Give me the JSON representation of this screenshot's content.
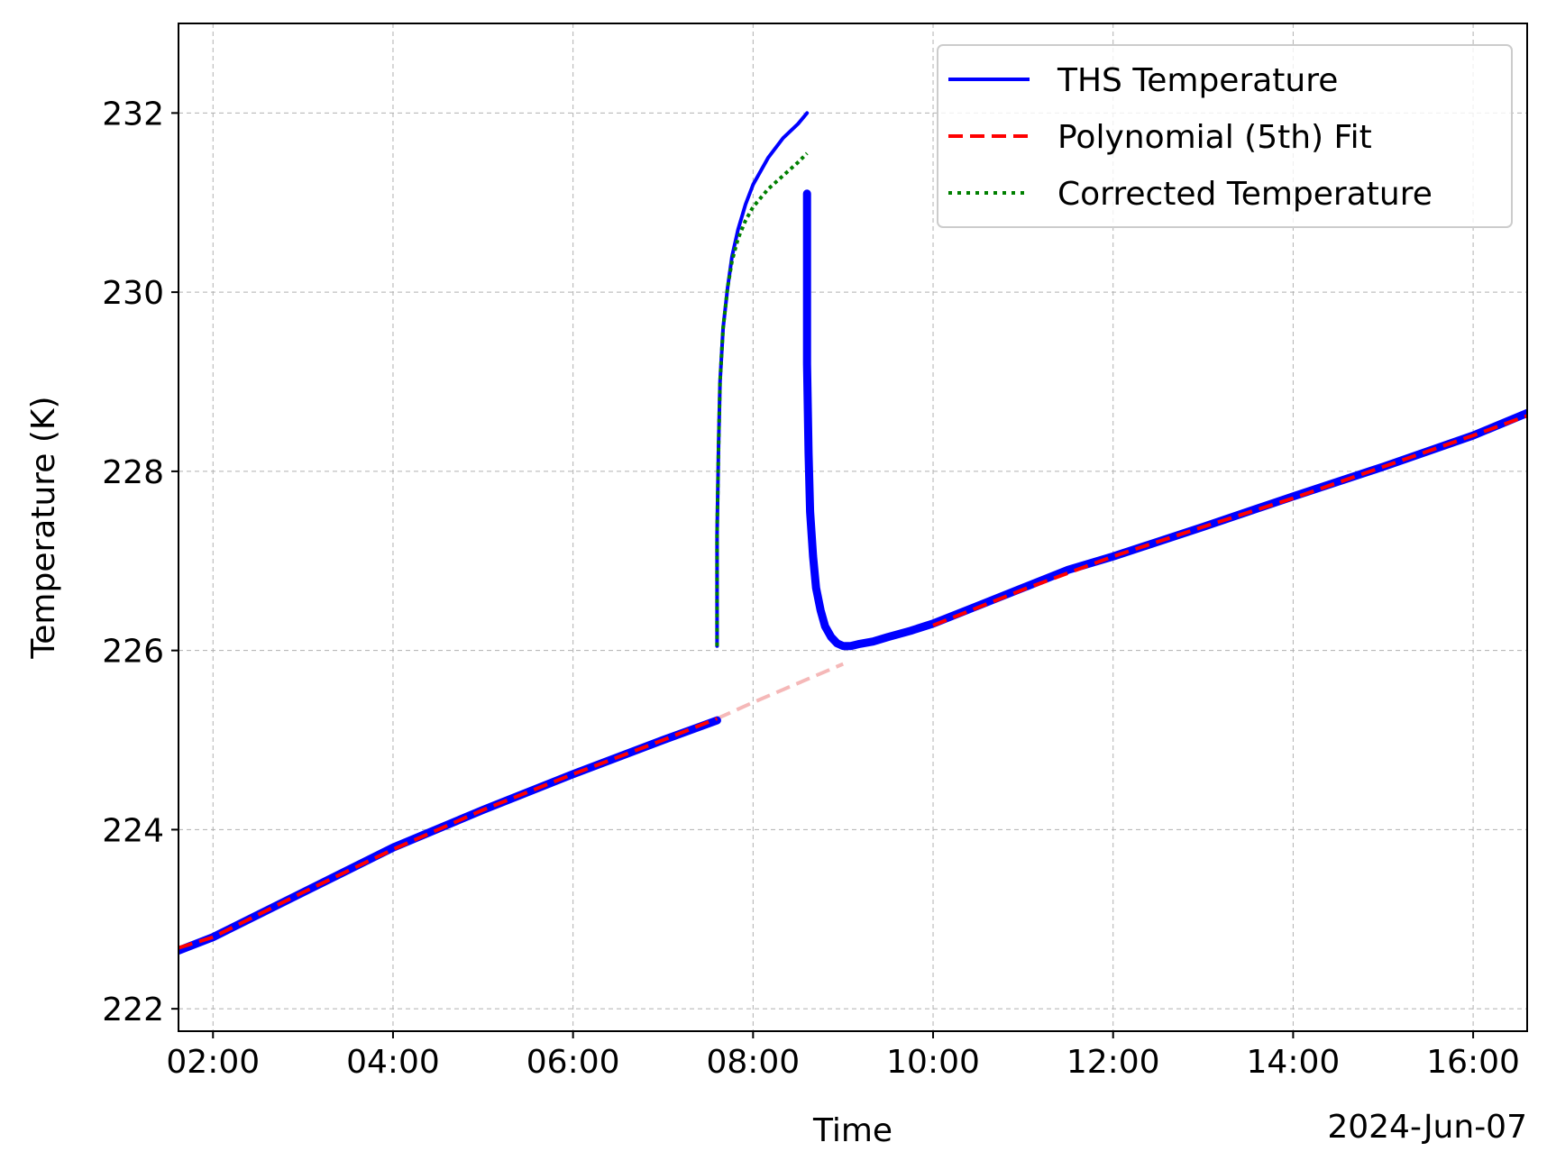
{
  "chart_data": {
    "type": "line",
    "title": "",
    "xlabel": "Time",
    "ylabel": "Temperature (K)",
    "x_offset_label": "2024-Jun-07",
    "xlim": [
      "01:37",
      "16:36"
    ],
    "ylim": [
      221.75,
      233.0
    ],
    "x_ticks": [
      "02:00",
      "04:00",
      "06:00",
      "08:00",
      "10:00",
      "12:00",
      "14:00",
      "16:00"
    ],
    "y_ticks": [
      222,
      224,
      226,
      228,
      230,
      232
    ],
    "grid": true,
    "legend_position": "top-right",
    "colors": {
      "ths": "#0000ff",
      "fit": "#ff0000",
      "fit_faded": "#f5b8b8",
      "corrected": "#008000"
    },
    "series": [
      {
        "name": "THS Temperature",
        "style": "solid",
        "color": "#0000ff",
        "segments": [
          {
            "x": [
              "01:37",
              "02:00",
              "03:00",
              "04:00",
              "05:00",
              "06:00",
              "07:00",
              "07:36"
            ],
            "y": [
              222.65,
              222.8,
              223.3,
              223.8,
              224.22,
              224.62,
              225.0,
              225.22
            ]
          },
          {
            "x": [
              "07:36",
              "07:36",
              "07:37",
              "07:38",
              "07:40",
              "07:43",
              "07:46",
              "07:50",
              "07:55",
              "08:00",
              "08:10",
              "08:20",
              "08:30",
              "08:36"
            ],
            "y": [
              226.05,
              227.3,
              228.3,
              229.0,
              229.6,
              230.05,
              230.4,
              230.7,
              230.98,
              231.2,
              231.5,
              231.72,
              231.88,
              232.0
            ]
          },
          {
            "x": [
              "08:36",
              "08:36",
              "08:37",
              "08:38",
              "08:40",
              "08:42",
              "08:45",
              "08:48",
              "08:52",
              "08:56",
              "09:00",
              "09:05",
              "09:10",
              "09:20",
              "09:30",
              "09:45",
              "10:00",
              "10:30",
              "11:00",
              "11:30",
              "12:00",
              "13:00",
              "14:00",
              "15:00",
              "16:00",
              "16:36"
            ],
            "y": [
              231.1,
              229.2,
              228.2,
              227.55,
              227.05,
              226.7,
              226.45,
              226.27,
              226.15,
              226.08,
              226.05,
              226.05,
              226.07,
              226.1,
              226.15,
              226.22,
              226.3,
              226.5,
              226.7,
              226.9,
              227.05,
              227.38,
              227.72,
              228.05,
              228.4,
              228.65
            ]
          }
        ]
      },
      {
        "name": "Polynomial (5th) Fit",
        "style": "dashed",
        "color": "#ff0000",
        "x": [
          "01:37",
          "02:00",
          "03:00",
          "04:00",
          "05:00",
          "06:00",
          "07:00",
          "07:36",
          "08:00",
          "09:00",
          "10:00",
          "11:00",
          "12:00",
          "13:00",
          "14:00",
          "15:00",
          "16:00",
          "16:36"
        ],
        "y": [
          222.68,
          222.8,
          223.3,
          223.78,
          224.22,
          224.62,
          225.0,
          225.24,
          225.42,
          225.85,
          226.28,
          226.68,
          227.05,
          227.38,
          227.7,
          228.05,
          228.4,
          228.62
        ]
      },
      {
        "name": "Corrected Temperature",
        "style": "dotted",
        "color": "#008000",
        "x": [
          "07:36",
          "07:36",
          "07:37",
          "07:38",
          "07:40",
          "07:43",
          "07:46",
          "07:50",
          "07:55",
          "08:00",
          "08:10",
          "08:20",
          "08:30",
          "08:36"
        ],
        "y": [
          226.05,
          227.3,
          228.3,
          229.0,
          229.6,
          230.05,
          230.35,
          230.6,
          230.8,
          230.95,
          231.15,
          231.3,
          231.45,
          231.55
        ]
      }
    ]
  }
}
